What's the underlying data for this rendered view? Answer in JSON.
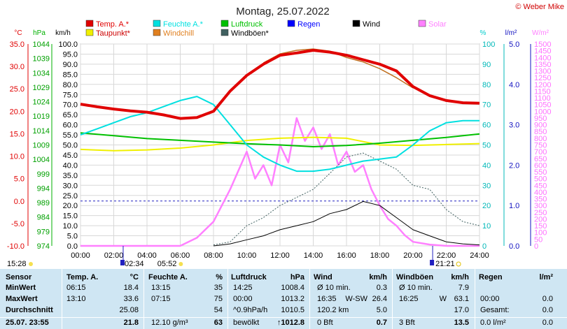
{
  "chart_data": {
    "type": "line",
    "title": "Montag, 25.07.2022",
    "credit": "© Weber Mike",
    "x_range": [
      0,
      24
    ],
    "x_tick_labels": [
      "00:00",
      "02:00",
      "04:00",
      "06:00",
      "08:00",
      "10:00",
      "12:00",
      "14:00",
      "16:00",
      "18:00",
      "20:00",
      "22:00",
      "24:00"
    ],
    "axes": {
      "temp_c": {
        "label": "°C",
        "min": -10,
        "max": 35,
        "ticks": [
          "35.0",
          "30.0",
          "25.0",
          "20.0",
          "15.0",
          "10.0",
          "5.0",
          "0.0",
          "-5.0",
          "-10.0"
        ],
        "color": "#e00000"
      },
      "pressure_hpa": {
        "label": "hPa",
        "min": 974,
        "max": 1044,
        "ticks": [
          "1044",
          "1039",
          "1034",
          "1029",
          "1024",
          "1019",
          "1014",
          "1009",
          "1004",
          "999",
          "994",
          "989",
          "984",
          "979",
          "974"
        ],
        "color": "#00b000"
      },
      "wind_kmh": {
        "label": "km/h",
        "min": 0,
        "max": 100,
        "ticks": [
          "100.0",
          "95.0",
          "90.0",
          "85.0",
          "80.0",
          "75.0",
          "70.0",
          "65.0",
          "60.0",
          "55.0",
          "50.0",
          "45.0",
          "40.0",
          "35.0",
          "30.0",
          "25.0",
          "20.0",
          "15.0",
          "10.0",
          "5.0",
          "0.0"
        ],
        "color": "#000000"
      },
      "humidity_pct": {
        "label": "%",
        "min": 0,
        "max": 100,
        "ticks": [
          "100",
          "90",
          "80",
          "70",
          "60",
          "50",
          "40",
          "30",
          "20",
          "10",
          "0"
        ],
        "color": "#00cccc"
      },
      "rain_lm2": {
        "label": "l/m²",
        "min": 0,
        "max": 5,
        "ticks": [
          "5.0",
          "4.0",
          "3.0",
          "2.0",
          "1.0",
          "0.0"
        ],
        "color": "#1010c0"
      },
      "solar_wm2": {
        "label": "W/m²",
        "min": 0,
        "max": 1500,
        "ticks": [
          "1500",
          "1450",
          "1400",
          "1350",
          "1300",
          "1250",
          "1200",
          "1150",
          "1100",
          "1050",
          "1000",
          "950",
          "900",
          "850",
          "800",
          "750",
          "700",
          "650",
          "600",
          "550",
          "500",
          "450",
          "400",
          "350",
          "300",
          "250",
          "200",
          "150",
          "100",
          "50",
          "0"
        ],
        "color": "#ff80ff"
      }
    },
    "legend": [
      {
        "name": "Temp. A.*",
        "color": "#e00000"
      },
      {
        "name": "Feuchte A.*",
        "color": "#00e0e0"
      },
      {
        "name": "Luftdruck",
        "color": "#00c000"
      },
      {
        "name": "Regen",
        "color": "#0000ff"
      },
      {
        "name": "Wind",
        "color": "#000000"
      },
      {
        "name": "Solar",
        "color": "#ff80ff"
      },
      {
        "name": "Taupunkt*",
        "color": "#f0f000"
      },
      {
        "name": "Windchill",
        "color": "#e08020"
      },
      {
        "name": "Windböen*",
        "color": "#406060"
      }
    ],
    "series": [
      {
        "name": "Temp. A.*",
        "axis": "temp_c",
        "color": "#e00000",
        "points": [
          [
            0,
            21.6
          ],
          [
            1,
            21.0
          ],
          [
            2,
            20.5
          ],
          [
            3,
            20.1
          ],
          [
            4,
            19.8
          ],
          [
            5,
            19.2
          ],
          [
            6,
            18.4
          ],
          [
            7,
            18.6
          ],
          [
            8,
            20.0
          ],
          [
            9,
            24.5
          ],
          [
            10,
            28.0
          ],
          [
            11,
            30.5
          ],
          [
            12,
            32.5
          ],
          [
            13,
            33.0
          ],
          [
            14,
            33.6
          ],
          [
            15,
            33.2
          ],
          [
            16,
            32.5
          ],
          [
            17,
            31.5
          ],
          [
            18,
            30.5
          ],
          [
            19,
            29.0
          ],
          [
            20,
            25.5
          ],
          [
            21,
            23.5
          ],
          [
            22,
            22.4
          ],
          [
            23,
            21.9
          ],
          [
            24,
            21.8
          ]
        ]
      },
      {
        "name": "Windchill",
        "axis": "temp_c",
        "color": "#c07020",
        "points": [
          [
            11,
            30.8
          ],
          [
            12,
            32.8
          ],
          [
            13,
            33.6
          ],
          [
            14,
            33.9
          ],
          [
            15,
            33.4
          ],
          [
            16,
            32.0
          ],
          [
            17,
            31.0
          ],
          [
            18,
            29.5
          ],
          [
            19,
            27.5
          ],
          [
            20,
            25.2
          ]
        ]
      },
      {
        "name": "Feuchte A.*",
        "axis": "humidity_pct",
        "color": "#00e0e0",
        "points": [
          [
            0,
            55
          ],
          [
            1,
            58
          ],
          [
            2,
            61
          ],
          [
            3,
            64
          ],
          [
            4,
            66
          ],
          [
            5,
            69
          ],
          [
            6,
            72
          ],
          [
            7,
            74
          ],
          [
            8,
            70
          ],
          [
            9,
            60
          ],
          [
            10,
            50
          ],
          [
            11,
            44
          ],
          [
            12,
            40
          ],
          [
            13,
            37
          ],
          [
            14,
            37
          ],
          [
            15,
            38
          ],
          [
            16,
            40
          ],
          [
            17,
            42
          ],
          [
            18,
            43
          ],
          [
            19,
            44
          ],
          [
            20,
            50
          ],
          [
            21,
            57
          ],
          [
            22,
            61
          ],
          [
            23,
            62
          ],
          [
            24,
            62
          ]
        ]
      },
      {
        "name": "Taupunkt*",
        "axis": "temp_c",
        "color": "#f0f000",
        "points": [
          [
            0,
            11.5
          ],
          [
            2,
            11.2
          ],
          [
            4,
            11.4
          ],
          [
            6,
            11.8
          ],
          [
            8,
            12.5
          ],
          [
            10,
            13.5
          ],
          [
            12,
            14.0
          ],
          [
            14,
            14.2
          ],
          [
            16,
            14.0
          ],
          [
            18,
            12.5
          ],
          [
            20,
            12.4
          ],
          [
            22,
            12.6
          ],
          [
            24,
            12.8
          ]
        ]
      },
      {
        "name": "Luftdruck",
        "axis": "pressure_hpa",
        "color": "#00c000",
        "points": [
          [
            0,
            1013.2
          ],
          [
            2,
            1012.2
          ],
          [
            4,
            1011.2
          ],
          [
            6,
            1010.6
          ],
          [
            8,
            1010.0
          ],
          [
            10,
            1009.4
          ],
          [
            12,
            1009.0
          ],
          [
            14,
            1008.4
          ],
          [
            16,
            1008.8
          ],
          [
            18,
            1009.6
          ],
          [
            20,
            1010.6
          ],
          [
            22,
            1011.6
          ],
          [
            24,
            1012.8
          ]
        ]
      },
      {
        "name": "Windböen*",
        "axis": "wind_kmh",
        "color": "#406060",
        "points": [
          [
            8,
            0.5
          ],
          [
            9,
            2
          ],
          [
            10,
            10
          ],
          [
            11,
            14
          ],
          [
            12,
            20
          ],
          [
            13,
            24
          ],
          [
            14,
            28
          ],
          [
            15,
            36
          ],
          [
            16,
            44
          ],
          [
            17,
            46
          ],
          [
            18,
            42
          ],
          [
            19,
            38
          ],
          [
            20,
            30
          ],
          [
            21,
            28
          ],
          [
            22,
            18
          ],
          [
            23,
            12
          ],
          [
            24,
            10
          ]
        ]
      },
      {
        "name": "Wind",
        "axis": "wind_kmh",
        "color": "#000000",
        "points": [
          [
            8,
            0
          ],
          [
            9,
            1
          ],
          [
            10,
            3
          ],
          [
            11,
            5
          ],
          [
            12,
            8
          ],
          [
            13,
            10
          ],
          [
            14,
            12
          ],
          [
            15,
            16
          ],
          [
            16,
            18
          ],
          [
            17,
            22
          ],
          [
            18,
            20
          ],
          [
            19,
            14
          ],
          [
            20,
            8
          ],
          [
            21,
            5
          ],
          [
            22,
            2
          ],
          [
            23,
            1
          ],
          [
            24,
            0.5
          ]
        ]
      },
      {
        "name": "Solar",
        "axis": "solar_wm2",
        "color": "#ff80ff",
        "points": [
          [
            0,
            0
          ],
          [
            6,
            0
          ],
          [
            7,
            60
          ],
          [
            8,
            180
          ],
          [
            9,
            420
          ],
          [
            10,
            700
          ],
          [
            10.5,
            500
          ],
          [
            11,
            600
          ],
          [
            11.5,
            450
          ],
          [
            12,
            750
          ],
          [
            12.5,
            620
          ],
          [
            13,
            950
          ],
          [
            13.5,
            780
          ],
          [
            14,
            880
          ],
          [
            14.5,
            720
          ],
          [
            15,
            830
          ],
          [
            15.5,
            600
          ],
          [
            16,
            700
          ],
          [
            16.5,
            550
          ],
          [
            17,
            600
          ],
          [
            17.5,
            420
          ],
          [
            18,
            300
          ],
          [
            18.5,
            200
          ],
          [
            19,
            150
          ],
          [
            19.5,
            80
          ],
          [
            20,
            30
          ],
          [
            21,
            10
          ],
          [
            22,
            0
          ],
          [
            24,
            0
          ]
        ]
      }
    ],
    "reference_line": {
      "axis": "temp_c",
      "value": 0
    }
  },
  "below_axis": {
    "left_time": "15:28",
    "sunrise": "05:52",
    "moonset": "02:34",
    "sunset": "21:21"
  },
  "stats": {
    "header": {
      "sensor": "Sensor",
      "temp": "Temp. A.",
      "temp_unit": "°C",
      "hum": "Feuchte A.",
      "hum_unit": "%",
      "press": "Luftdruck",
      "press_unit": "hPa",
      "wind": "Wind",
      "wind_unit": "km/h",
      "gust": "Windböen",
      "gust_unit": "km/h",
      "rain": "Regen",
      "rain_unit": "l/m²"
    },
    "rows": [
      {
        "label": "MinWert",
        "temp_time": "06:15",
        "temp": "18.4",
        "hum_time": "13:15",
        "hum": "35",
        "press_time": "14:25",
        "press": "1008.4",
        "wind_a": "Ø 10 min.",
        "wind_b": "",
        "wind": "0.3",
        "gust_a": "Ø 10 min.",
        "gust": "7.9",
        "rain_a": "",
        "rain": ""
      },
      {
        "label": "MaxWert",
        "temp_time": "13:10",
        "temp": "33.6",
        "hum_time": "07:15",
        "hum": "75",
        "press_time": "00:00",
        "press": "1013.2",
        "wind_a": "16:35",
        "wind_b": "W-SW",
        "wind": "26.4",
        "gust_a": "16:25",
        "gust_b": "W",
        "gust": "63.1",
        "rain_a": "00:00",
        "rain": "0.0"
      },
      {
        "label": "Durchschnitt",
        "temp_time": "",
        "temp": "25.08",
        "hum_time": "",
        "hum": "54",
        "press_time": "^0.9hPa/h",
        "press": "1010.5",
        "wind_a": "120.2 km",
        "wind_b": "",
        "wind": "5.0",
        "gust_a": "",
        "gust": "17.0",
        "rain_a": "Gesamt:",
        "rain": "0.0"
      },
      {
        "label": "25.07. 23:55",
        "temp_time": "",
        "temp": "21.8",
        "hum_time": "12.10 g/m³",
        "hum": "63",
        "press_time": "bewölkt",
        "press": "↑1012.8",
        "wind_a": "0 Bft",
        "wind_b": "",
        "wind": "0.7",
        "gust_a": "3 Bft",
        "gust": "13.5",
        "rain_a": "0.0 l/m²",
        "rain": "0.0"
      }
    ]
  }
}
